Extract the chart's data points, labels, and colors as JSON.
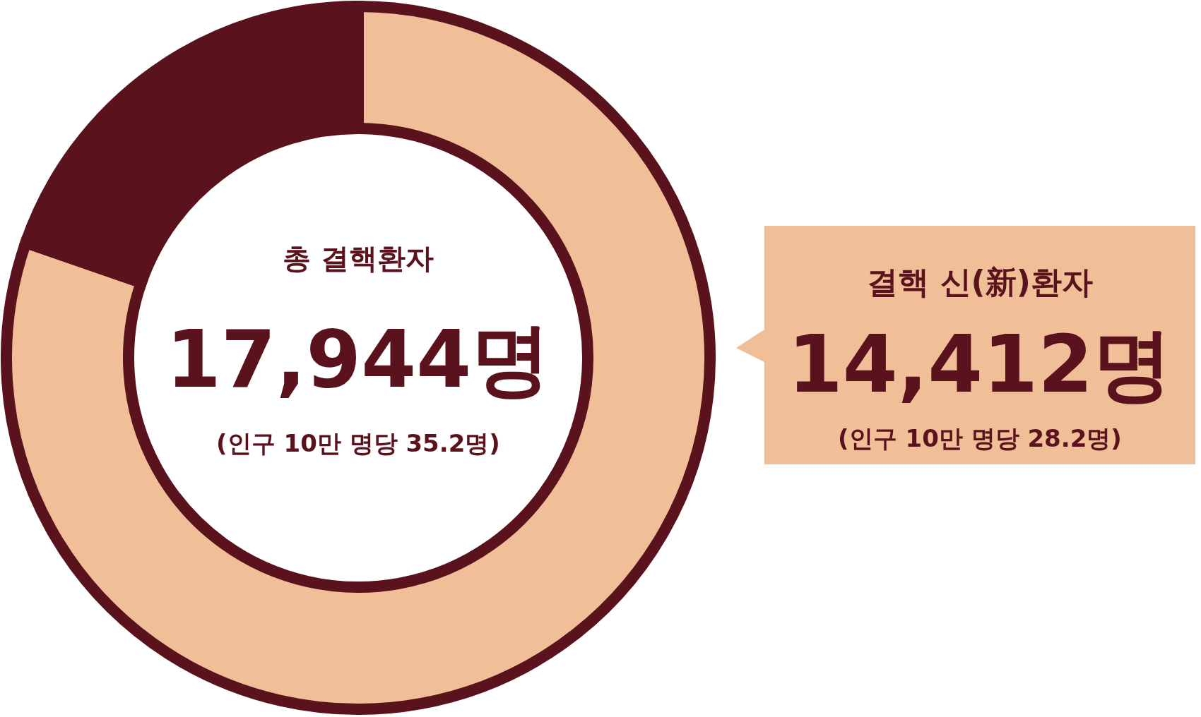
{
  "chart_data": {
    "type": "donut",
    "categories": [
      "결핵 신(新)환자",
      null
    ],
    "values": [
      14412,
      3532
    ],
    "colors": [
      "#f0bf98",
      "#5a121c"
    ],
    "value_labels": [
      "14,412명",
      null
    ],
    "annotations": [
      "총 결핵환자",
      "17,944명",
      "(인구 10만 명당 35.2명)",
      "(인구 10만 명당 28.2명)"
    ]
  }
}
